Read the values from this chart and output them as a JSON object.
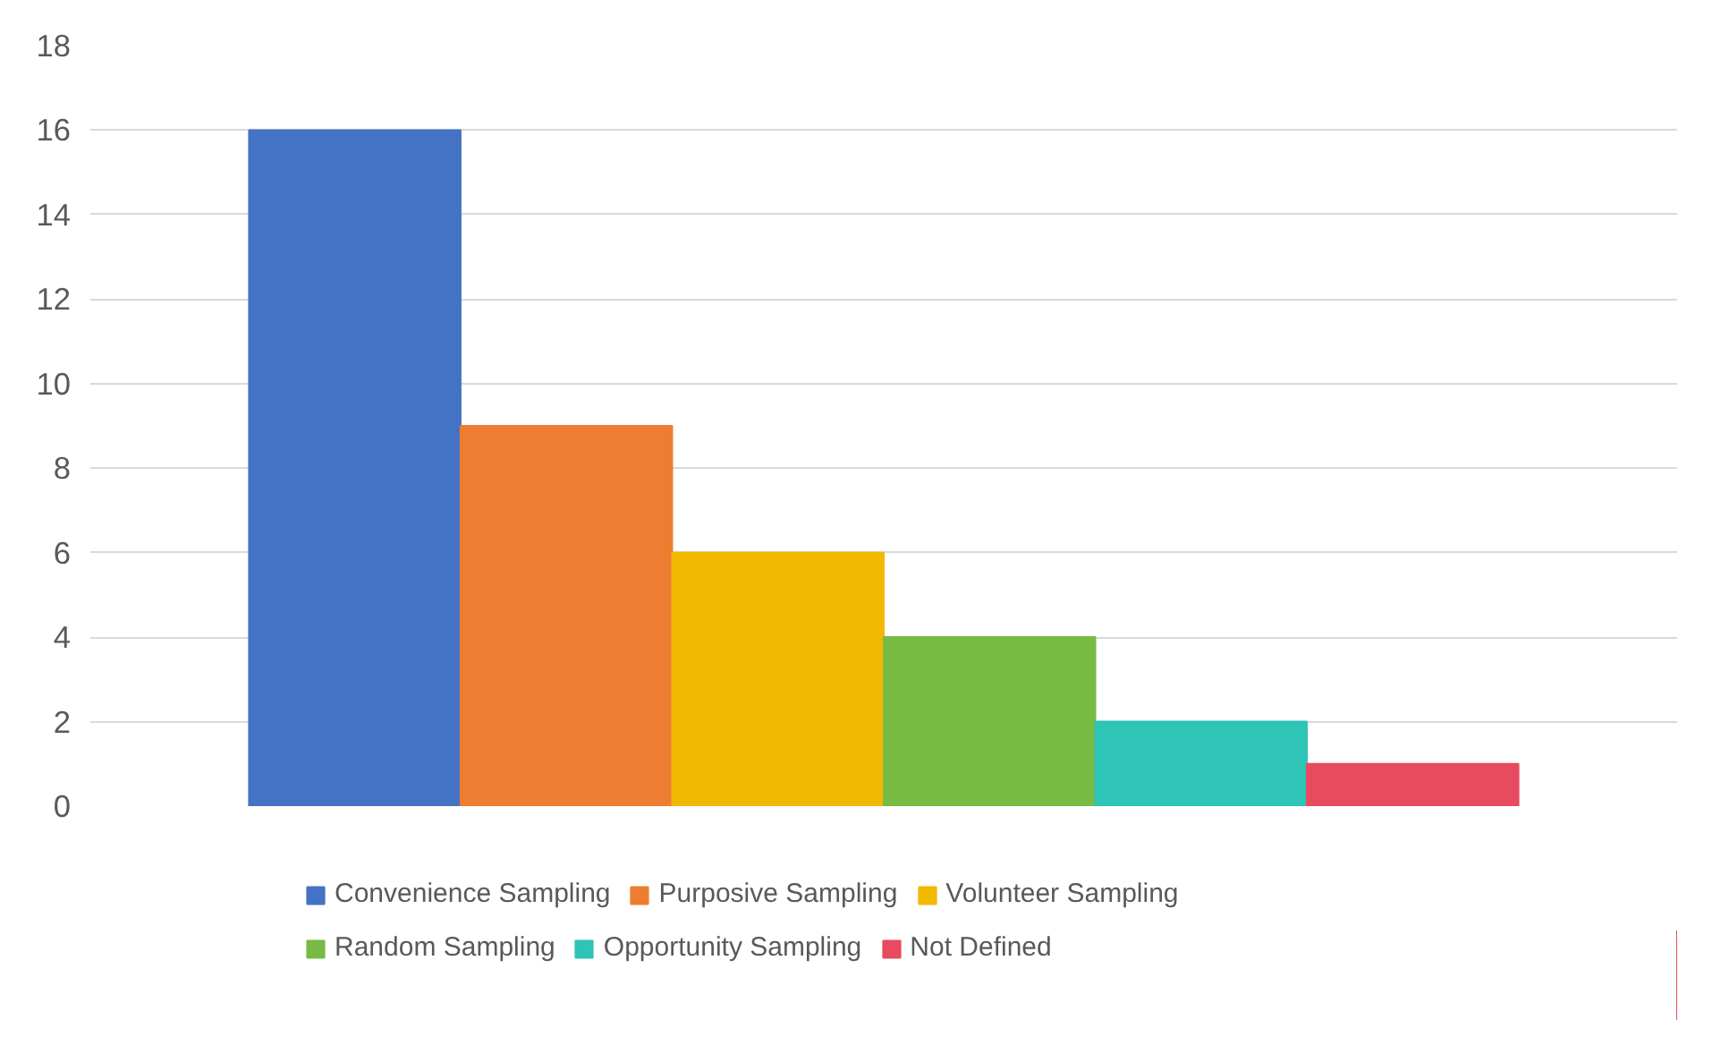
{
  "chart_data": {
    "type": "bar",
    "categories": [
      null
    ],
    "series": [
      {
        "name": "Convenience Sampling",
        "color": "#4472c4",
        "values": [
          16
        ]
      },
      {
        "name": "Purposive Sampling",
        "color": "#ed7d31",
        "values": [
          9
        ]
      },
      {
        "name": "Volunteer Sampling",
        "color": "#f2b800",
        "values": [
          6
        ]
      },
      {
        "name": "Random Sampling",
        "color": "#77bb44",
        "values": [
          4
        ]
      },
      {
        "name": "Opportunity Sampling",
        "color": "#2ec4b6",
        "values": [
          2
        ]
      },
      {
        "name": "Not Defined",
        "color": "#e84a5f",
        "values": [
          1
        ]
      }
    ],
    "ylim": [
      0,
      18
    ],
    "yticks": [
      0,
      2,
      4,
      6,
      8,
      10,
      12,
      14,
      16,
      18
    ],
    "grid": "y",
    "legend": "bottom"
  }
}
